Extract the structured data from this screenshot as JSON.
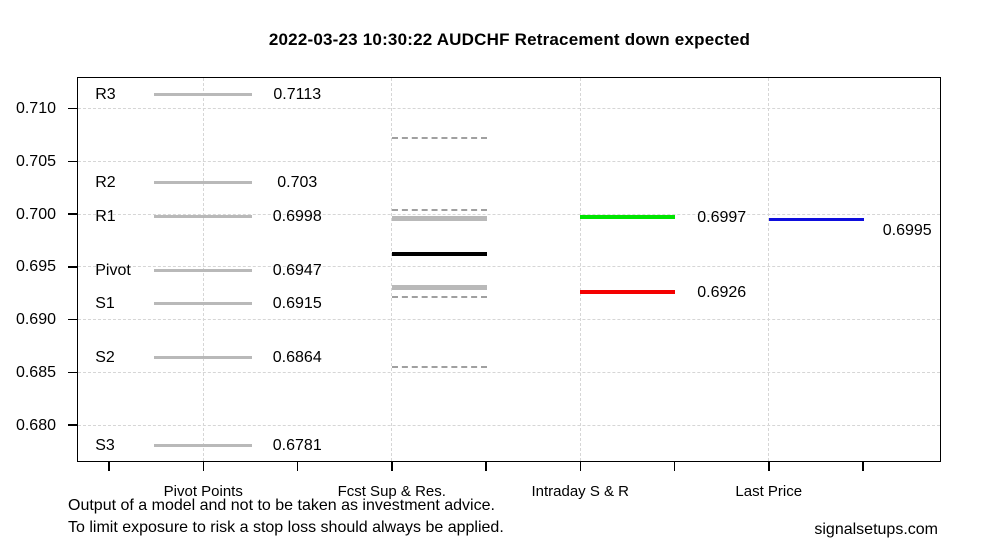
{
  "title": "2022-03-23 10:30:22 AUDCHF Retracement down expected",
  "footer": {
    "disclaimer_line1": "Output of a model and not to be taken as investment advice.",
    "disclaimer_line2": "To limit exposure to risk a stop loss should always be applied.",
    "site": "signalsetups.com"
  },
  "chart_data": {
    "type": "line",
    "title": "2022-03-23 10:30:22 AUDCHF Retracement down expected",
    "xlabel": "",
    "ylabel": "",
    "ylim": [
      0.6766,
      0.7129
    ],
    "grid": true,
    "legend_position": "none",
    "y_ticks": [
      {
        "value": 0.71,
        "label": "0.710"
      },
      {
        "value": 0.705,
        "label": "0.705"
      },
      {
        "value": 0.7,
        "label": "0.700"
      },
      {
        "value": 0.695,
        "label": "0.695"
      },
      {
        "value": 0.69,
        "label": "0.690"
      },
      {
        "value": 0.685,
        "label": "0.685"
      },
      {
        "value": 0.68,
        "label": "0.680"
      }
    ],
    "categories": [
      "Pivot Points",
      "Fcst Sup & Res.",
      "Intraday S & R",
      "Last Price"
    ],
    "colors": {
      "pivot_line": "#b9b9b9",
      "fcst_solid": "#b9b9b9",
      "fcst_dashed": "#a0a0a0",
      "fcst_central": "#000000",
      "resistance": "#00e500",
      "support": "#f40000",
      "last_price": "#0e0edd",
      "gridline": "#d6d6d6",
      "text": "#000000"
    },
    "series": [
      {
        "name": "Pivot Points",
        "levels": [
          {
            "label": "R3",
            "value": 0.7113,
            "display": "0.7113",
            "style": "pivot"
          },
          {
            "label": "R2",
            "value": 0.703,
            "display": "0.703",
            "style": "pivot"
          },
          {
            "label": "R1",
            "value": 0.6998,
            "display": "0.6998",
            "style": "pivot"
          },
          {
            "label": "Pivot",
            "value": 0.6947,
            "display": "0.6947",
            "style": "pivot"
          },
          {
            "label": "S1",
            "value": 0.6915,
            "display": "0.6915",
            "style": "pivot"
          },
          {
            "label": "S2",
            "value": 0.6864,
            "display": "0.6864",
            "style": "pivot"
          },
          {
            "label": "S3",
            "value": 0.6781,
            "display": "0.6781",
            "style": "pivot"
          }
        ]
      },
      {
        "name": "Fcst Sup & Res.",
        "levels": [
          {
            "value": 0.7072,
            "style": "dashed"
          },
          {
            "value": 0.7004,
            "style": "dashed"
          },
          {
            "value": 0.6996,
            "style": "solid"
          },
          {
            "value": 0.6962,
            "style": "central"
          },
          {
            "value": 0.693,
            "style": "solid"
          },
          {
            "value": 0.6921,
            "style": "dashed"
          },
          {
            "value": 0.6855,
            "style": "dashed"
          }
        ]
      },
      {
        "name": "Intraday S & R",
        "levels": [
          {
            "value": 0.6997,
            "display": "0.6997",
            "style": "resistance"
          },
          {
            "value": 0.6926,
            "display": "0.6926",
            "style": "support"
          }
        ]
      },
      {
        "name": "Last Price",
        "levels": [
          {
            "value": 0.6995,
            "display": "0.6995",
            "style": "last"
          }
        ]
      }
    ]
  }
}
